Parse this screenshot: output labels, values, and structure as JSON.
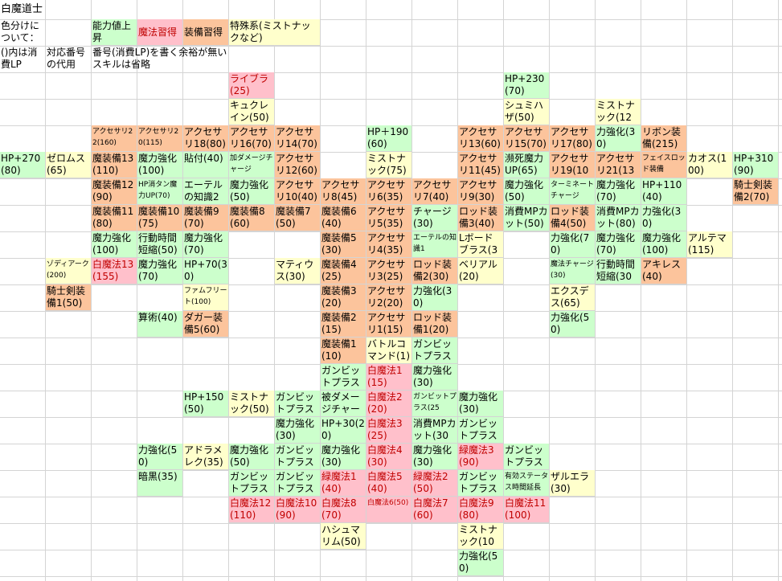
{
  "sheet": {
    "title": "白魔道士",
    "legend": {
      "color_note": "色分けについて：",
      "paren_note": "()内は消費LP",
      "index_note": "対応番号の代用",
      "order_note": "番号(消費LP)を書く余裕が無いスキルは省略",
      "stat_label": "能力値上昇",
      "magic_label": "魔法習得",
      "equip_label": "装備習得",
      "special_label": "特殊系(ミストナックなど)"
    },
    "colors": {
      "stat": "#ccffcc",
      "magic": "#ffc0cb",
      "equip": "#fcc49c",
      "special": "#ffffcc",
      "grid": "#d4d4d4"
    },
    "cells": [
      {
        "t": "ライブラ(25)",
        "c": "r"
      },
      {
        "t": "キュクレイン(50)",
        "c": "y"
      },
      {
        "t": "HP+230(70)",
        "c": "g"
      },
      {
        "t": "シュミハザ(50)",
        "c": "y"
      },
      {
        "t": "ミストナック(125)",
        "c": "y"
      },
      {
        "t": "アクセサリ22(160)",
        "c": "o"
      },
      {
        "t": "アクセサリ20(115)",
        "c": "o"
      },
      {
        "t": "アクセサリ18(80)",
        "c": "o"
      },
      {
        "t": "アクセサリ16(70)",
        "c": "o"
      },
      {
        "t": "アクセサリ14(70)",
        "c": "o"
      },
      {
        "t": "HP＋190(60)",
        "c": "g"
      },
      {
        "t": "アクセサリ13(60)",
        "c": "o"
      },
      {
        "t": "アクセサリ15(70)",
        "c": "o"
      },
      {
        "t": "アクセサリ17(80)",
        "c": "o"
      },
      {
        "t": "力強化(30)",
        "c": "g"
      },
      {
        "t": "リボン装備(215)",
        "c": "o"
      },
      {
        "t": "HP+270(80)",
        "c": "g"
      },
      {
        "t": "ゼロムス(65)",
        "c": "y"
      },
      {
        "t": "魔装備13(110)",
        "c": "o"
      },
      {
        "t": "魔力強化(100)",
        "c": "g"
      },
      {
        "t": "貼付(40)",
        "c": "g"
      },
      {
        "t": "加ダメージチャージ",
        "c": "g"
      },
      {
        "t": "アクセサリ12(60)",
        "c": "o"
      },
      {
        "t": "ミストナック(75)",
        "c": "y"
      },
      {
        "t": "アクセサリ11(45)",
        "c": "o"
      },
      {
        "t": "瀕死魔力UP(65)",
        "c": "g"
      },
      {
        "t": "アクセサリ19(100)",
        "c": "o"
      },
      {
        "t": "アクセサリ21(130)",
        "c": "o"
      },
      {
        "t": "フェイスロッド装備",
        "c": "o"
      },
      {
        "t": "カオス(100)",
        "c": "y"
      },
      {
        "t": "HP+310(90)",
        "c": "g"
      },
      {
        "t": "魔装備12(90)",
        "c": "o"
      },
      {
        "t": "HP消タン魔力UP(70)",
        "c": "g"
      },
      {
        "t": "エーテルの知識2",
        "c": "g"
      },
      {
        "t": "魔力強化(50)",
        "c": "g"
      },
      {
        "t": "アクセサリ10(40)",
        "c": "o"
      },
      {
        "t": "アクセサリ8(45)",
        "c": "o"
      },
      {
        "t": "アクセサリ6(35)",
        "c": "o"
      },
      {
        "t": "アクセサリ7(40)",
        "c": "o"
      },
      {
        "t": "アクセサリ9(30)",
        "c": "o"
      },
      {
        "t": "魔力強化(50)",
        "c": "g"
      },
      {
        "t": "ターミネートチャージ",
        "c": "g"
      },
      {
        "t": "魔力強化(70)",
        "c": "g"
      },
      {
        "t": "HP+110(40)",
        "c": "g"
      },
      {
        "t": "騎士剣装備2(70)",
        "c": "o"
      },
      {
        "t": "魔装備11(80)",
        "c": "o"
      },
      {
        "t": "魔装備10(75)",
        "c": "o"
      },
      {
        "t": "魔装備9(70)",
        "c": "o"
      },
      {
        "t": "魔装備8(60)",
        "c": "o"
      },
      {
        "t": "魔装備7(50)",
        "c": "o"
      },
      {
        "t": "魔装備6(40)",
        "c": "o"
      },
      {
        "t": "アクセサリ5(35)",
        "c": "o"
      },
      {
        "t": "チャージ(30)",
        "c": "g"
      },
      {
        "t": "ロッド装備3(40)",
        "c": "o"
      },
      {
        "t": "消費MPカット(50)",
        "c": "g"
      },
      {
        "t": "ロッド装備4(50)",
        "c": "o"
      },
      {
        "t": "消費MPカット(80)",
        "c": "g"
      },
      {
        "t": "力強化(30)",
        "c": "g"
      },
      {
        "t": "魔力強化(100)",
        "c": "g"
      },
      {
        "t": "行動時間短縮(50)",
        "c": "g"
      },
      {
        "t": "魔力強化(70)",
        "c": "g"
      },
      {
        "t": "魔装備5(30)",
        "c": "o"
      },
      {
        "t": "アクセサリ4(35)",
        "c": "o"
      },
      {
        "t": "エーテルの知識1",
        "c": "g"
      },
      {
        "t": "Lボードブラス(30)",
        "c": "y"
      },
      {
        "t": "力強化(70)",
        "c": "g"
      },
      {
        "t": "魔力強化(70)",
        "c": "g"
      },
      {
        "t": "魔力強化(100)",
        "c": "g"
      },
      {
        "t": "アルテマ(115)",
        "c": "y"
      },
      {
        "t": "ゾディアーク(200)",
        "c": "y"
      },
      {
        "t": "白魔法13(155)",
        "c": "r"
      },
      {
        "t": "魔力強化(70)",
        "c": "g"
      },
      {
        "t": "HP+70(30)",
        "c": "g"
      },
      {
        "t": "マティウス(30)",
        "c": "y"
      },
      {
        "t": "魔装備4(25)",
        "c": "o"
      },
      {
        "t": "アクセサリ3(25)",
        "c": "o"
      },
      {
        "t": "ロッド装備2(30)",
        "c": "o"
      },
      {
        "t": "ベリアル(20)",
        "c": "y"
      },
      {
        "t": "魔法チャージ(30)",
        "c": "g"
      },
      {
        "t": "行動時間短縮(30",
        "c": "g"
      },
      {
        "t": "アキレス(40)",
        "c": "o"
      },
      {
        "t": "騎士剣装備1(50)",
        "c": "o"
      },
      {
        "t": "ファムフリート(100)",
        "c": "y"
      },
      {
        "t": "魔装備3(20)",
        "c": "o"
      },
      {
        "t": "アクセサリ2(20)",
        "c": "o"
      },
      {
        "t": "力強化(30)",
        "c": "g"
      },
      {
        "t": "エクスデス(65)",
        "c": "y"
      },
      {
        "t": "算術(40)",
        "c": "g"
      },
      {
        "t": "ダガー装備5(60)",
        "c": "o"
      },
      {
        "t": "魔装備2(15)",
        "c": "o"
      },
      {
        "t": "アクセサリ1(15)",
        "c": "o"
      },
      {
        "t": "ロッド装備1(20)",
        "c": "o"
      },
      {
        "t": "力強化(50)",
        "c": "g"
      },
      {
        "t": "魔装備1(10)",
        "c": "o"
      },
      {
        "t": "バトルコマンド(1)",
        "c": "y"
      },
      {
        "t": "ガンビットプラス(15",
        "c": "g"
      },
      {
        "t": "ガンビットプラス(20",
        "c": "g"
      },
      {
        "t": "白魔法1(15)",
        "c": "r"
      },
      {
        "t": "魔力強化(30)",
        "c": "g"
      },
      {
        "t": "HP+150(50)",
        "c": "g"
      },
      {
        "t": "ミストナック(50)",
        "c": "y"
      },
      {
        "t": "ガンビットプラス(30",
        "c": "g"
      },
      {
        "t": "被ダメージチャージ",
        "c": "g"
      },
      {
        "t": "白魔法2(20)",
        "c": "r"
      },
      {
        "t": "ガンビットプラス(25",
        "c": "g"
      },
      {
        "t": "魔力強化(30)",
        "c": "g"
      },
      {
        "t": "魔力強化(30)",
        "c": "g"
      },
      {
        "t": "HP+30(20)",
        "c": "g"
      },
      {
        "t": "白魔法3(25)",
        "c": "r"
      },
      {
        "t": "消費MPカット(30",
        "c": "g"
      },
      {
        "t": "ガンビットプラス(35",
        "c": "g"
      },
      {
        "t": "力強化(50)",
        "c": "g"
      },
      {
        "t": "アドラメレク(35)",
        "c": "y"
      },
      {
        "t": "魔力強化(50)",
        "c": "g"
      },
      {
        "t": "ガンビットプラス(45",
        "c": "g"
      },
      {
        "t": "魔力強化(30)",
        "c": "g"
      },
      {
        "t": "白魔法4(30)",
        "c": "r"
      },
      {
        "t": "魔力強化(30)",
        "c": "g"
      },
      {
        "t": "緑魔法3(90)",
        "c": "r"
      },
      {
        "t": "ガンビットプラス(40",
        "c": "g"
      },
      {
        "t": "暗黒(35)",
        "c": "g"
      },
      {
        "t": "ガンビットプラス(100",
        "c": "g"
      },
      {
        "t": "ガンビットプラス(70",
        "c": "g"
      },
      {
        "t": "緑魔法1(40)",
        "c": "r"
      },
      {
        "t": "白魔法5(40)",
        "c": "r"
      },
      {
        "t": "緑魔法2(50)",
        "c": "r"
      },
      {
        "t": "ガンビットプラス(50",
        "c": "g"
      },
      {
        "t": "有効ステータス時間延長",
        "c": "g"
      },
      {
        "t": "ザルエラ(30)",
        "c": "y"
      },
      {
        "t": "白魔法12(110)",
        "c": "r"
      },
      {
        "t": "白魔法10(90)",
        "c": "r"
      },
      {
        "t": "白魔法8(70)",
        "c": "r"
      },
      {
        "t": "白魔法6(50)",
        "c": "r"
      },
      {
        "t": "白魔法7(60)",
        "c": "r"
      },
      {
        "t": "白魔法9(80)",
        "c": "r"
      },
      {
        "t": "白魔法11(100)",
        "c": "r"
      },
      {
        "t": "ハシュマリム(50)",
        "c": "y"
      },
      {
        "t": "ミストナック(100)",
        "c": "y"
      },
      {
        "t": "力強化(50)",
        "c": "g"
      }
    ]
  }
}
